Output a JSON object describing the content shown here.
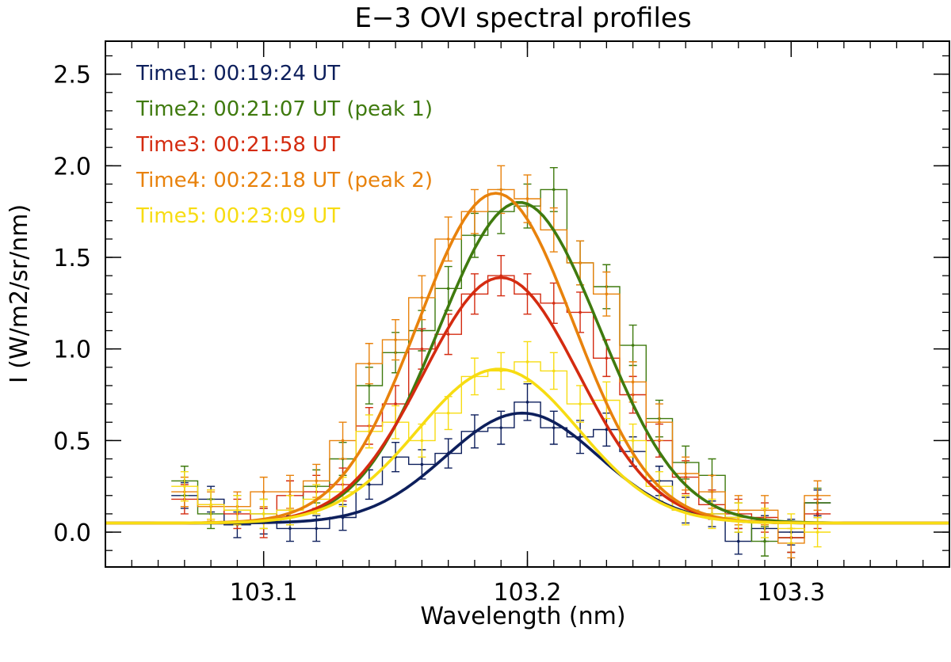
{
  "chart_data": {
    "type": "line",
    "title": "E−3 OVI spectral profiles",
    "xlabel": "Wavelength (nm)",
    "ylabel": "I (W/m2/sr/nm)",
    "xlim": [
      103.04,
      103.36
    ],
    "ylim": [
      -0.19,
      2.68
    ],
    "x_ticks": [
      {
        "value": 103.1,
        "label": "103.1"
      },
      {
        "value": 103.2,
        "label": "103.2"
      },
      {
        "value": 103.3,
        "label": "103.3"
      }
    ],
    "y_ticks": [
      {
        "value": 0.0,
        "label": "0.0"
      },
      {
        "value": 0.5,
        "label": "0.5"
      },
      {
        "value": 1.0,
        "label": "1.0"
      },
      {
        "value": 1.5,
        "label": "1.5"
      },
      {
        "value": 2.0,
        "label": "2.0"
      },
      {
        "value": 2.5,
        "label": "2.5"
      }
    ],
    "x_minor_step": 0.01,
    "y_minor_step": 0.1,
    "grid": false,
    "legend_position": "top-left",
    "series": [
      {
        "name": "Time1: 00:19:24 UT",
        "color": "#0d1f5c",
        "fit": {
          "amplitude": 0.6,
          "center": 103.198,
          "sigma": 0.029,
          "baseline": 0.05
        },
        "observed": [
          {
            "x": 103.07,
            "y": 0.2,
            "err": 0.07
          },
          {
            "x": 103.08,
            "y": 0.18,
            "err": 0.07
          },
          {
            "x": 103.09,
            "y": 0.04,
            "err": 0.07
          },
          {
            "x": 103.1,
            "y": 0.06,
            "err": 0.07
          },
          {
            "x": 103.11,
            "y": 0.02,
            "err": 0.07
          },
          {
            "x": 103.12,
            "y": 0.02,
            "err": 0.07
          },
          {
            "x": 103.13,
            "y": 0.08,
            "err": 0.07
          },
          {
            "x": 103.14,
            "y": 0.26,
            "err": 0.08
          },
          {
            "x": 103.15,
            "y": 0.41,
            "err": 0.08
          },
          {
            "x": 103.16,
            "y": 0.37,
            "err": 0.08
          },
          {
            "x": 103.17,
            "y": 0.43,
            "err": 0.08
          },
          {
            "x": 103.18,
            "y": 0.55,
            "err": 0.09
          },
          {
            "x": 103.19,
            "y": 0.57,
            "err": 0.09
          },
          {
            "x": 103.2,
            "y": 0.71,
            "err": 0.1
          },
          {
            "x": 103.21,
            "y": 0.57,
            "err": 0.09
          },
          {
            "x": 103.22,
            "y": 0.52,
            "err": 0.09
          },
          {
            "x": 103.23,
            "y": 0.56,
            "err": 0.09
          },
          {
            "x": 103.24,
            "y": 0.44,
            "err": 0.08
          },
          {
            "x": 103.25,
            "y": 0.28,
            "err": 0.08
          },
          {
            "x": 103.26,
            "y": 0.12,
            "err": 0.07
          },
          {
            "x": 103.27,
            "y": 0.1,
            "err": 0.07
          },
          {
            "x": 103.28,
            "y": -0.05,
            "err": 0.07
          },
          {
            "x": 103.29,
            "y": 0.02,
            "err": 0.07
          },
          {
            "x": 103.3,
            "y": 0.0,
            "err": 0.07
          },
          {
            "x": 103.31,
            "y": 0.16,
            "err": 0.07
          }
        ]
      },
      {
        "name": "Time2: 00:21:07 UT (peak 1)",
        "color": "#3f7a0e",
        "fit": {
          "amplitude": 1.75,
          "center": 103.197,
          "sigma": 0.0305,
          "baseline": 0.05
        },
        "observed": [
          {
            "x": 103.07,
            "y": 0.28,
            "err": 0.08
          },
          {
            "x": 103.08,
            "y": 0.1,
            "err": 0.08
          },
          {
            "x": 103.09,
            "y": 0.12,
            "err": 0.08
          },
          {
            "x": 103.1,
            "y": 0.1,
            "err": 0.08
          },
          {
            "x": 103.11,
            "y": 0.12,
            "err": 0.08
          },
          {
            "x": 103.12,
            "y": 0.25,
            "err": 0.09
          },
          {
            "x": 103.13,
            "y": 0.4,
            "err": 0.09
          },
          {
            "x": 103.14,
            "y": 0.8,
            "err": 0.1
          },
          {
            "x": 103.15,
            "y": 0.98,
            "err": 0.11
          },
          {
            "x": 103.16,
            "y": 1.1,
            "err": 0.11
          },
          {
            "x": 103.17,
            "y": 1.33,
            "err": 0.12
          },
          {
            "x": 103.18,
            "y": 1.62,
            "err": 0.12
          },
          {
            "x": 103.19,
            "y": 1.75,
            "err": 0.12
          },
          {
            "x": 103.2,
            "y": 1.78,
            "err": 0.12
          },
          {
            "x": 103.21,
            "y": 1.87,
            "err": 0.12
          },
          {
            "x": 103.22,
            "y": 1.47,
            "err": 0.12
          },
          {
            "x": 103.23,
            "y": 1.34,
            "err": 0.12
          },
          {
            "x": 103.24,
            "y": 1.02,
            "err": 0.11
          },
          {
            "x": 103.25,
            "y": 0.62,
            "err": 0.1
          },
          {
            "x": 103.26,
            "y": 0.38,
            "err": 0.09
          },
          {
            "x": 103.27,
            "y": 0.31,
            "err": 0.09
          },
          {
            "x": 103.28,
            "y": 0.08,
            "err": 0.08
          },
          {
            "x": 103.29,
            "y": -0.05,
            "err": 0.08
          },
          {
            "x": 103.3,
            "y": -0.03,
            "err": 0.08
          },
          {
            "x": 103.31,
            "y": 0.16,
            "err": 0.08
          }
        ]
      },
      {
        "name": "Time3: 00:21:58 UT",
        "color": "#d42b10",
        "fit": {
          "amplitude": 1.34,
          "center": 103.19,
          "sigma": 0.0295,
          "baseline": 0.05
        },
        "observed": [
          {
            "x": 103.07,
            "y": 0.18,
            "err": 0.08
          },
          {
            "x": 103.08,
            "y": 0.15,
            "err": 0.08
          },
          {
            "x": 103.09,
            "y": 0.1,
            "err": 0.08
          },
          {
            "x": 103.1,
            "y": 0.05,
            "err": 0.08
          },
          {
            "x": 103.11,
            "y": 0.2,
            "err": 0.08
          },
          {
            "x": 103.12,
            "y": 0.22,
            "err": 0.09
          },
          {
            "x": 103.13,
            "y": 0.26,
            "err": 0.09
          },
          {
            "x": 103.14,
            "y": 0.58,
            "err": 0.1
          },
          {
            "x": 103.15,
            "y": 0.7,
            "err": 0.1
          },
          {
            "x": 103.16,
            "y": 1.0,
            "err": 0.11
          },
          {
            "x": 103.17,
            "y": 1.08,
            "err": 0.11
          },
          {
            "x": 103.18,
            "y": 1.3,
            "err": 0.11
          },
          {
            "x": 103.19,
            "y": 1.4,
            "err": 0.11
          },
          {
            "x": 103.2,
            "y": 1.3,
            "err": 0.11
          },
          {
            "x": 103.21,
            "y": 1.25,
            "err": 0.11
          },
          {
            "x": 103.22,
            "y": 1.2,
            "err": 0.11
          },
          {
            "x": 103.23,
            "y": 0.95,
            "err": 0.1
          },
          {
            "x": 103.24,
            "y": 0.75,
            "err": 0.1
          },
          {
            "x": 103.25,
            "y": 0.5,
            "err": 0.09
          },
          {
            "x": 103.26,
            "y": 0.3,
            "err": 0.09
          },
          {
            "x": 103.27,
            "y": 0.15,
            "err": 0.08
          },
          {
            "x": 103.28,
            "y": 0.1,
            "err": 0.08
          },
          {
            "x": 103.29,
            "y": 0.08,
            "err": 0.08
          },
          {
            "x": 103.3,
            "y": -0.03,
            "err": 0.08
          },
          {
            "x": 103.31,
            "y": 0.1,
            "err": 0.08
          }
        ]
      },
      {
        "name": "Time4: 00:22:18 UT (peak 2)",
        "color": "#e8820c",
        "fit": {
          "amplitude": 1.8,
          "center": 103.188,
          "sigma": 0.0295,
          "baseline": 0.05
        },
        "observed": [
          {
            "x": 103.07,
            "y": 0.22,
            "err": 0.08
          },
          {
            "x": 103.08,
            "y": 0.14,
            "err": 0.08
          },
          {
            "x": 103.09,
            "y": 0.14,
            "err": 0.08
          },
          {
            "x": 103.1,
            "y": 0.22,
            "err": 0.08
          },
          {
            "x": 103.11,
            "y": 0.22,
            "err": 0.09
          },
          {
            "x": 103.12,
            "y": 0.28,
            "err": 0.09
          },
          {
            "x": 103.13,
            "y": 0.5,
            "err": 0.1
          },
          {
            "x": 103.14,
            "y": 0.92,
            "err": 0.11
          },
          {
            "x": 103.15,
            "y": 1.05,
            "err": 0.11
          },
          {
            "x": 103.16,
            "y": 1.28,
            "err": 0.12
          },
          {
            "x": 103.17,
            "y": 1.6,
            "err": 0.12
          },
          {
            "x": 103.18,
            "y": 1.75,
            "err": 0.12
          },
          {
            "x": 103.19,
            "y": 1.87,
            "err": 0.13
          },
          {
            "x": 103.2,
            "y": 1.82,
            "err": 0.13
          },
          {
            "x": 103.21,
            "y": 1.65,
            "err": 0.12
          },
          {
            "x": 103.22,
            "y": 1.47,
            "err": 0.12
          },
          {
            "x": 103.23,
            "y": 1.3,
            "err": 0.12
          },
          {
            "x": 103.24,
            "y": 0.82,
            "err": 0.11
          },
          {
            "x": 103.25,
            "y": 0.6,
            "err": 0.1
          },
          {
            "x": 103.26,
            "y": 0.32,
            "err": 0.09
          },
          {
            "x": 103.27,
            "y": 0.22,
            "err": 0.09
          },
          {
            "x": 103.28,
            "y": 0.12,
            "err": 0.08
          },
          {
            "x": 103.29,
            "y": 0.12,
            "err": 0.08
          },
          {
            "x": 103.3,
            "y": -0.06,
            "err": 0.08
          },
          {
            "x": 103.31,
            "y": 0.2,
            "err": 0.08
          }
        ]
      },
      {
        "name": "Time5: 00:23:09 UT",
        "color": "#f7dc12",
        "fit": {
          "amplitude": 0.84,
          "center": 103.189,
          "sigma": 0.0305,
          "baseline": 0.05
        },
        "observed": [
          {
            "x": 103.07,
            "y": 0.25,
            "err": 0.08
          },
          {
            "x": 103.08,
            "y": 0.15,
            "err": 0.08
          },
          {
            "x": 103.09,
            "y": 0.12,
            "err": 0.08
          },
          {
            "x": 103.1,
            "y": 0.1,
            "err": 0.08
          },
          {
            "x": 103.11,
            "y": 0.12,
            "err": 0.08
          },
          {
            "x": 103.12,
            "y": 0.18,
            "err": 0.08
          },
          {
            "x": 103.13,
            "y": 0.22,
            "err": 0.08
          },
          {
            "x": 103.14,
            "y": 0.55,
            "err": 0.09
          },
          {
            "x": 103.15,
            "y": 0.6,
            "err": 0.09
          },
          {
            "x": 103.16,
            "y": 0.5,
            "err": 0.09
          },
          {
            "x": 103.17,
            "y": 0.65,
            "err": 0.09
          },
          {
            "x": 103.18,
            "y": 0.85,
            "err": 0.1
          },
          {
            "x": 103.19,
            "y": 0.88,
            "err": 0.1
          },
          {
            "x": 103.2,
            "y": 0.93,
            "err": 0.11
          },
          {
            "x": 103.21,
            "y": 0.88,
            "err": 0.1
          },
          {
            "x": 103.22,
            "y": 0.7,
            "err": 0.1
          },
          {
            "x": 103.23,
            "y": 0.72,
            "err": 0.1
          },
          {
            "x": 103.24,
            "y": 0.5,
            "err": 0.09
          },
          {
            "x": 103.25,
            "y": 0.25,
            "err": 0.08
          },
          {
            "x": 103.26,
            "y": 0.12,
            "err": 0.08
          },
          {
            "x": 103.27,
            "y": 0.1,
            "err": 0.08
          },
          {
            "x": 103.28,
            "y": 0.08,
            "err": 0.08
          },
          {
            "x": 103.29,
            "y": 0.05,
            "err": 0.08
          },
          {
            "x": 103.3,
            "y": 0.02,
            "err": 0.08
          },
          {
            "x": 103.31,
            "y": 0.0,
            "err": 0.08
          }
        ]
      }
    ]
  }
}
